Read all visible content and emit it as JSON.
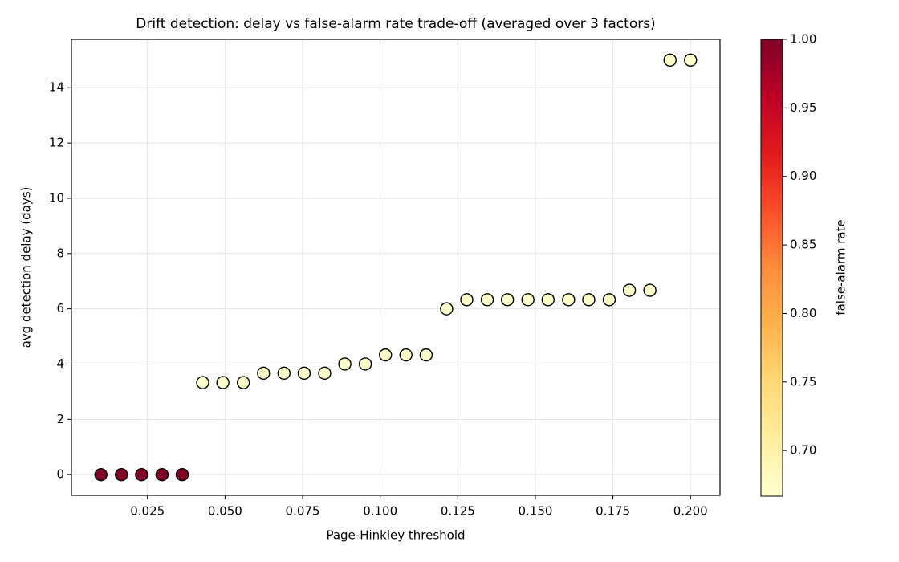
{
  "chart_data": {
    "type": "scatter",
    "title": "Drift detection: delay vs false-alarm rate trade-off (averaged over 3 factors)",
    "xlabel": "Page-Hinkley threshold",
    "ylabel": "avg detection delay (days)",
    "x": [
      0.01,
      0.0166,
      0.0231,
      0.0297,
      0.0362,
      0.0428,
      0.0493,
      0.0559,
      0.0624,
      0.069,
      0.0755,
      0.0821,
      0.0886,
      0.0952,
      0.1017,
      0.1083,
      0.1148,
      0.1214,
      0.1279,
      0.1345,
      0.141,
      0.1476,
      0.1541,
      0.1607,
      0.1672,
      0.1738,
      0.1803,
      0.1869,
      0.1934,
      0.2
    ],
    "values": [
      0,
      0,
      0,
      0,
      0,
      3.33,
      3.33,
      3.33,
      3.67,
      3.67,
      3.67,
      3.67,
      4,
      4,
      4.33,
      4.33,
      4.33,
      6,
      6.33,
      6.33,
      6.33,
      6.33,
      6.33,
      6.33,
      6.33,
      6.33,
      6.67,
      6.67,
      15,
      15
    ],
    "color_values": [
      1,
      1,
      1,
      1,
      1,
      0.6667,
      0.6667,
      0.6667,
      0.6667,
      0.6667,
      0.6667,
      0.6667,
      0.6667,
      0.6667,
      0.6667,
      0.6667,
      0.6667,
      0.6667,
      0.6667,
      0.6667,
      0.6667,
      0.6667,
      0.6667,
      0.6667,
      0.6667,
      0.6667,
      0.6667,
      0.6667,
      0.6667,
      0.6667
    ],
    "xlim": [
      0.0005,
      0.2095
    ],
    "ylim": [
      -0.75,
      15.75
    ],
    "xticks": [
      0.025,
      {
        "value": 0.05,
        "label": "0.050"
      },
      0.075,
      {
        "value": 0.1,
        "label": "0.100"
      },
      0.125,
      {
        "value": 0.15,
        "label": "0.150"
      },
      0.175,
      {
        "value": 0.2,
        "label": "0.200"
      }
    ],
    "yticks": [
      0,
      2,
      4,
      6,
      8,
      10,
      12,
      14
    ],
    "grid": true,
    "marker_edge_color": "#000000",
    "colormap": [
      "#ffffcc",
      "#ffeda0",
      "#fed976",
      "#feb24c",
      "#fd8d3c",
      "#fc4e2a",
      "#e31a1c",
      "#bd0026",
      "#800026"
    ],
    "colorbar": {
      "label": "false-alarm rate",
      "lim": [
        0.6667,
        1
      ],
      "ticks": [
        {
          "value": 0.7,
          "label": "0.70"
        },
        {
          "value": 0.75,
          "label": "0.75"
        },
        {
          "value": 0.8,
          "label": "0.80"
        },
        {
          "value": 0.85,
          "label": "0.85"
        },
        {
          "value": 0.9,
          "label": "0.90"
        },
        {
          "value": 0.95,
          "label": "0.95"
        },
        {
          "value": 1,
          "label": "1.00"
        }
      ]
    }
  }
}
